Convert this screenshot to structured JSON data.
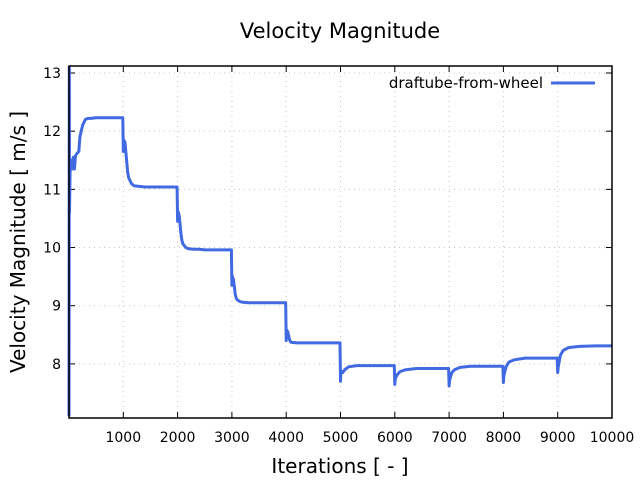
{
  "chart_data": {
    "type": "line",
    "title": "Velocity Magnitude",
    "xlabel": "Iterations [ - ]",
    "ylabel": "Velocity Magnitude [ m/s ]",
    "xlim": [
      0,
      10000
    ],
    "ylim": [
      7.07,
      13.12
    ],
    "xticks": [
      1000,
      2000,
      3000,
      4000,
      5000,
      6000,
      7000,
      8000,
      9000,
      10000
    ],
    "xtick_labels": [
      "1000",
      "2000",
      "3000",
      "4000",
      "5000",
      "6000",
      "7000",
      "8000",
      "9000",
      "10000"
    ],
    "yticks": [
      8,
      9,
      10,
      11,
      12,
      13
    ],
    "ytick_labels": [
      "8",
      "9",
      "10",
      "11",
      "12",
      "13"
    ],
    "grid": true,
    "legend_position": "top-right",
    "series": [
      {
        "name": "draftube-from-wheel",
        "color": "#4169e1",
        "x": [
          0,
          5,
          10,
          20,
          40,
          60,
          80,
          100,
          120,
          150,
          180,
          200,
          250,
          300,
          350,
          400,
          500,
          700,
          990,
          1000,
          1005,
          1010,
          1030,
          1060,
          1080,
          1100,
          1150,
          1200,
          1300,
          1400,
          1500,
          1700,
          1990,
          2000,
          2005,
          2010,
          2030,
          2060,
          2080,
          2100,
          2150,
          2200,
          2300,
          2400,
          2500,
          2700,
          2990,
          3000,
          3005,
          3010,
          3030,
          3060,
          3080,
          3100,
          3150,
          3200,
          3300,
          3400,
          3500,
          3700,
          3990,
          4000,
          4005,
          4010,
          4030,
          4060,
          4080,
          4100,
          4200,
          4400,
          4700,
          4990,
          5000,
          5005,
          5010,
          5040,
          5080,
          5150,
          5300,
          5500,
          5800,
          5990,
          6000,
          6005,
          6010,
          6050,
          6100,
          6200,
          6400,
          6700,
          6990,
          7000,
          7005,
          7010,
          7050,
          7100,
          7200,
          7400,
          7700,
          7990,
          8000,
          8005,
          8010,
          8050,
          8100,
          8200,
          8400,
          8700,
          8990,
          9000,
          9005,
          9010,
          9050,
          9100,
          9200,
          9400,
          9700,
          10000
        ],
        "y": [
          7.1,
          13.1,
          10.6,
          11.3,
          11.5,
          11.35,
          11.55,
          11.35,
          11.58,
          11.62,
          11.65,
          11.9,
          12.1,
          12.2,
          12.22,
          12.22,
          12.23,
          12.23,
          12.23,
          11.65,
          11.85,
          11.8,
          11.82,
          11.5,
          11.3,
          11.2,
          11.1,
          11.06,
          11.05,
          11.04,
          11.04,
          11.04,
          11.04,
          10.45,
          10.6,
          10.62,
          10.55,
          10.25,
          10.12,
          10.06,
          10.0,
          9.98,
          9.97,
          9.97,
          9.96,
          9.96,
          9.96,
          9.35,
          9.52,
          9.5,
          9.45,
          9.2,
          9.13,
          9.1,
          9.07,
          9.06,
          9.05,
          9.05,
          9.05,
          9.05,
          9.05,
          8.4,
          8.55,
          8.58,
          8.55,
          8.42,
          8.38,
          8.37,
          8.36,
          8.36,
          8.36,
          8.36,
          7.7,
          7.85,
          7.88,
          7.85,
          7.9,
          7.95,
          7.97,
          7.97,
          7.97,
          7.97,
          7.65,
          7.72,
          7.75,
          7.82,
          7.87,
          7.9,
          7.92,
          7.92,
          7.92,
          7.62,
          7.68,
          7.72,
          7.85,
          7.9,
          7.94,
          7.96,
          7.96,
          7.96,
          7.68,
          7.75,
          7.8,
          7.95,
          8.03,
          8.07,
          8.1,
          8.1,
          8.1,
          7.85,
          7.9,
          7.95,
          8.15,
          8.23,
          8.28,
          8.3,
          8.31,
          8.31
        ]
      }
    ]
  }
}
